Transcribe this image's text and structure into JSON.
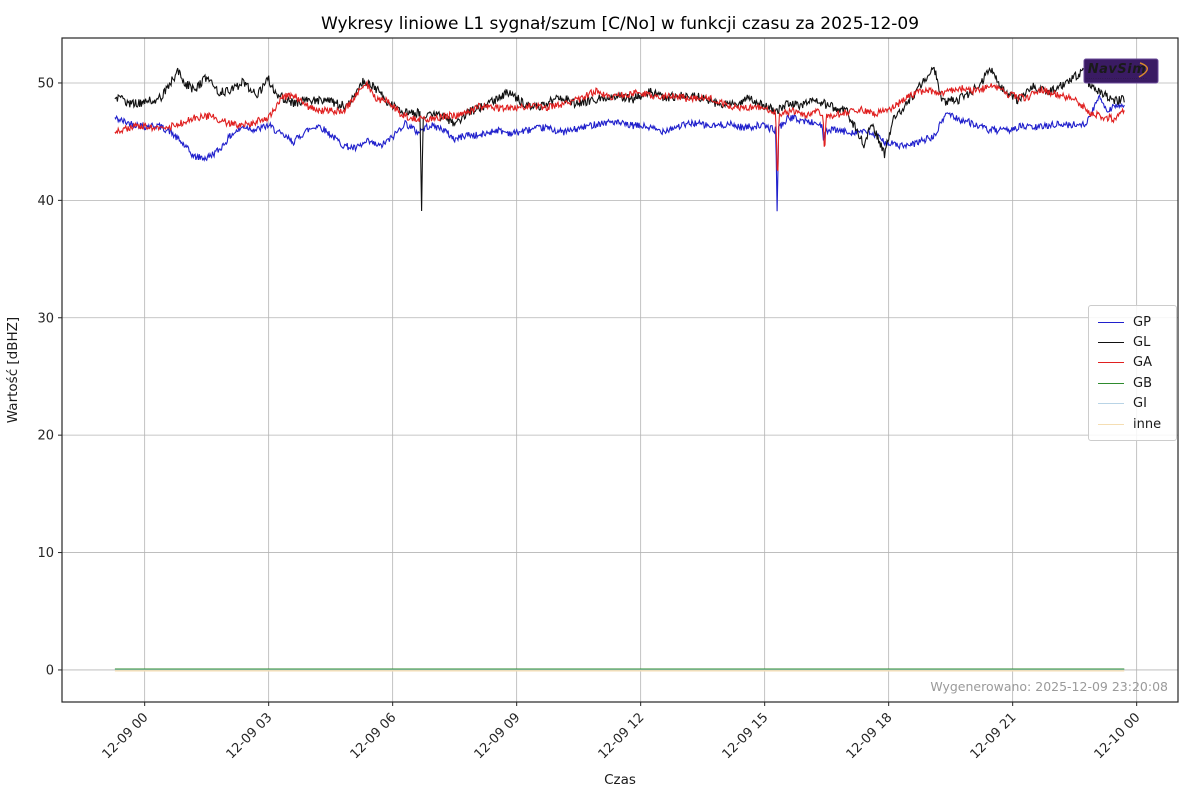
{
  "chart_data": {
    "type": "line",
    "title": "Wykresy liniowe L1 sygnał/szum [C/No] w funkcji czasu za 2025-12-09",
    "xlabel": "Czas",
    "ylabel": "Wartość [dBHZ]",
    "x_ticks": [
      "12-09 00",
      "12-09 03",
      "12-09 06",
      "12-09 09",
      "12-09 12",
      "12-09 15",
      "12-09 18",
      "12-09 21",
      "12-10 00"
    ],
    "x_tick_hours": [
      0,
      3,
      6,
      9,
      12,
      15,
      18,
      21,
      24
    ],
    "x_range_hours": [
      -2.0,
      25.0
    ],
    "y_ticks": [
      0,
      10,
      20,
      30,
      40,
      50
    ],
    "ylim": [
      -2.73,
      53.83
    ],
    "grid": true,
    "colors": {
      "grid": "#b4b4b4",
      "axis": "#262626",
      "generated_text": "#9a9a9a",
      "logo_bg": "#3a1b63",
      "logo_border": "#6a4a9a",
      "logo_text": "#4cc9a6",
      "logo_swoosh": "#d98a2b"
    },
    "legend": {
      "position": "right",
      "entries": [
        {
          "label": "GP",
          "color": "#2020cc"
        },
        {
          "label": "GL",
          "color": "#111111"
        },
        {
          "label": "GA",
          "color": "#e02020"
        },
        {
          "label": "GB",
          "color": "#2e8b2e"
        },
        {
          "label": "GI",
          "color": "#b9d4e6"
        },
        {
          "label": "inne",
          "color": "#f5deb3"
        }
      ]
    },
    "annotations": {
      "generated": "Wygenerowano: 2025-12-09 23:20:08",
      "logo_text": "NavSim",
      "logo_subtext": "···························"
    },
    "sample_step_hours": 0.02,
    "series": [
      {
        "name": "GP",
        "color": "#2020cc",
        "noise": 0.3,
        "width": 1.1,
        "anchors": [
          [
            -0.72,
            47.0
          ],
          [
            -0.4,
            46.6
          ],
          [
            0,
            46.3
          ],
          [
            0.3,
            46.4
          ],
          [
            0.6,
            45.9
          ],
          [
            0.9,
            44.9
          ],
          [
            1.2,
            43.7
          ],
          [
            1.5,
            43.6
          ],
          [
            1.8,
            44.3
          ],
          [
            2.1,
            45.6
          ],
          [
            2.4,
            46.3
          ],
          [
            2.7,
            46.0
          ],
          [
            3.0,
            46.4
          ],
          [
            3.3,
            45.6
          ],
          [
            3.6,
            45.0
          ],
          [
            3.9,
            45.9
          ],
          [
            4.2,
            46.4
          ],
          [
            4.5,
            45.6
          ],
          [
            4.8,
            44.7
          ],
          [
            5.1,
            44.4
          ],
          [
            5.4,
            45.0
          ],
          [
            5.7,
            44.6
          ],
          [
            6.0,
            45.4
          ],
          [
            6.3,
            46.6
          ],
          [
            6.6,
            45.8
          ],
          [
            6.9,
            46.4
          ],
          [
            7.2,
            46.1
          ],
          [
            7.5,
            45.2
          ],
          [
            7.8,
            45.6
          ],
          [
            8.1,
            45.5
          ],
          [
            8.5,
            46.0
          ],
          [
            8.9,
            45.7
          ],
          [
            9.3,
            46.0
          ],
          [
            9.7,
            46.2
          ],
          [
            10.1,
            45.8
          ],
          [
            10.5,
            46.1
          ],
          [
            10.9,
            46.5
          ],
          [
            11.3,
            46.7
          ],
          [
            11.7,
            46.4
          ],
          [
            12.1,
            46.3
          ],
          [
            12.5,
            45.9
          ],
          [
            12.9,
            46.3
          ],
          [
            13.3,
            46.6
          ],
          [
            13.7,
            46.3
          ],
          [
            14.1,
            46.5
          ],
          [
            14.5,
            46.2
          ],
          [
            14.9,
            46.4
          ],
          [
            15.27,
            46.0
          ],
          [
            15.3,
            39.0
          ],
          [
            15.34,
            46.2
          ],
          [
            15.6,
            47.1
          ],
          [
            15.9,
            46.8
          ],
          [
            16.2,
            46.6
          ],
          [
            16.39,
            46.4
          ],
          [
            16.43,
            44.6
          ],
          [
            16.47,
            45.9
          ],
          [
            16.7,
            46.0
          ],
          [
            17.0,
            45.8
          ],
          [
            17.3,
            45.9
          ],
          [
            17.6,
            45.7
          ],
          [
            17.9,
            45.0
          ],
          [
            18.2,
            44.7
          ],
          [
            18.5,
            44.6
          ],
          [
            18.8,
            45.1
          ],
          [
            19.1,
            45.4
          ],
          [
            19.4,
            47.5
          ],
          [
            19.7,
            46.9
          ],
          [
            20.0,
            46.6
          ],
          [
            20.4,
            46.0
          ],
          [
            20.8,
            45.9
          ],
          [
            21.2,
            46.3
          ],
          [
            21.6,
            46.2
          ],
          [
            22.0,
            46.5
          ],
          [
            22.4,
            46.4
          ],
          [
            22.8,
            46.6
          ],
          [
            23.1,
            48.9
          ],
          [
            23.3,
            47.6
          ],
          [
            23.5,
            48.2
          ],
          [
            23.72,
            47.9
          ]
        ]
      },
      {
        "name": "GL",
        "color": "#111111",
        "noise": 0.38,
        "width": 1.1,
        "anchors": [
          [
            -0.72,
            48.8
          ],
          [
            -0.3,
            48.2
          ],
          [
            0,
            48.4
          ],
          [
            0.4,
            48.7
          ],
          [
            0.8,
            51.0
          ],
          [
            1.0,
            49.9
          ],
          [
            1.2,
            49.4
          ],
          [
            1.5,
            50.5
          ],
          [
            1.8,
            49.2
          ],
          [
            2.1,
            49.4
          ],
          [
            2.4,
            50.1
          ],
          [
            2.7,
            48.9
          ],
          [
            3.0,
            50.3
          ],
          [
            3.2,
            49.0
          ],
          [
            3.6,
            48.3
          ],
          [
            4.0,
            48.6
          ],
          [
            4.4,
            48.5
          ],
          [
            4.9,
            48.0
          ],
          [
            5.3,
            50.2
          ],
          [
            5.6,
            49.5
          ],
          [
            5.9,
            48.3
          ],
          [
            6.2,
            47.6
          ],
          [
            6.5,
            47.5
          ],
          [
            6.66,
            47.4
          ],
          [
            6.7,
            39.2
          ],
          [
            6.74,
            47.3
          ],
          [
            7.1,
            47.3
          ],
          [
            7.5,
            46.6
          ],
          [
            7.9,
            47.6
          ],
          [
            8.3,
            48.2
          ],
          [
            8.8,
            49.2
          ],
          [
            9.2,
            48.2
          ],
          [
            9.6,
            48.0
          ],
          [
            10.0,
            48.8
          ],
          [
            10.4,
            48.3
          ],
          [
            10.9,
            48.5
          ],
          [
            11.3,
            49.0
          ],
          [
            11.8,
            48.6
          ],
          [
            12.2,
            49.3
          ],
          [
            12.6,
            48.7
          ],
          [
            13.0,
            49.0
          ],
          [
            13.4,
            48.8
          ],
          [
            13.8,
            48.3
          ],
          [
            14.2,
            48.1
          ],
          [
            14.6,
            48.7
          ],
          [
            15.0,
            48.0
          ],
          [
            15.3,
            47.6
          ],
          [
            15.6,
            48.3
          ],
          [
            15.9,
            48.1
          ],
          [
            16.2,
            48.6
          ],
          [
            16.6,
            48.0
          ],
          [
            17.0,
            47.5
          ],
          [
            17.4,
            44.8
          ],
          [
            17.6,
            46.5
          ],
          [
            17.9,
            43.9
          ],
          [
            18.1,
            46.8
          ],
          [
            18.5,
            48.6
          ],
          [
            18.8,
            49.9
          ],
          [
            19.1,
            51.3
          ],
          [
            19.3,
            48.4
          ],
          [
            19.7,
            48.6
          ],
          [
            20.1,
            49.5
          ],
          [
            20.5,
            51.2
          ],
          [
            20.7,
            49.6
          ],
          [
            21.1,
            48.5
          ],
          [
            21.5,
            49.7
          ],
          [
            21.9,
            49.2
          ],
          [
            22.3,
            50.0
          ],
          [
            22.7,
            51.0
          ],
          [
            22.9,
            49.6
          ],
          [
            23.2,
            49.0
          ],
          [
            23.5,
            48.5
          ],
          [
            23.72,
            48.6
          ]
        ]
      },
      {
        "name": "GA",
        "color": "#e02020",
        "noise": 0.3,
        "width": 1.1,
        "anchors": [
          [
            -0.72,
            45.9
          ],
          [
            -0.3,
            46.2
          ],
          [
            0,
            46.4
          ],
          [
            0.4,
            46.0
          ],
          [
            0.8,
            46.5
          ],
          [
            1.2,
            47.0
          ],
          [
            1.6,
            47.2
          ],
          [
            2.0,
            46.6
          ],
          [
            2.3,
            46.4
          ],
          [
            2.6,
            46.6
          ],
          [
            3.0,
            47.0
          ],
          [
            3.3,
            48.7
          ],
          [
            3.6,
            49.0
          ],
          [
            3.9,
            48.1
          ],
          [
            4.2,
            47.6
          ],
          [
            4.5,
            47.7
          ],
          [
            4.8,
            47.5
          ],
          [
            5.1,
            48.9
          ],
          [
            5.35,
            50.0
          ],
          [
            5.6,
            48.6
          ],
          [
            5.9,
            48.5
          ],
          [
            6.2,
            47.3
          ],
          [
            6.5,
            47.0
          ],
          [
            6.9,
            46.9
          ],
          [
            7.3,
            47.2
          ],
          [
            7.7,
            47.3
          ],
          [
            8.1,
            48.0
          ],
          [
            8.5,
            47.9
          ],
          [
            8.9,
            47.8
          ],
          [
            9.3,
            48.1
          ],
          [
            9.7,
            47.9
          ],
          [
            10.1,
            48.2
          ],
          [
            10.5,
            48.6
          ],
          [
            10.9,
            49.3
          ],
          [
            11.2,
            48.8
          ],
          [
            11.6,
            49.0
          ],
          [
            12.0,
            49.2
          ],
          [
            12.4,
            48.8
          ],
          [
            12.8,
            48.9
          ],
          [
            13.2,
            48.6
          ],
          [
            13.6,
            48.8
          ],
          [
            14.0,
            48.2
          ],
          [
            14.4,
            47.8
          ],
          [
            14.8,
            48.0
          ],
          [
            15.27,
            47.6
          ],
          [
            15.31,
            41.2
          ],
          [
            15.35,
            47.4
          ],
          [
            15.7,
            47.6
          ],
          [
            16.0,
            47.3
          ],
          [
            16.2,
            47.5
          ],
          [
            16.41,
            47.5
          ],
          [
            16.45,
            43.5
          ],
          [
            16.49,
            47.2
          ],
          [
            16.9,
            47.4
          ],
          [
            17.3,
            47.8
          ],
          [
            17.7,
            47.4
          ],
          [
            18.1,
            47.9
          ],
          [
            18.5,
            48.9
          ],
          [
            18.9,
            49.4
          ],
          [
            19.3,
            49.1
          ],
          [
            19.7,
            49.6
          ],
          [
            20.1,
            49.3
          ],
          [
            20.5,
            49.8
          ],
          [
            20.9,
            49.0
          ],
          [
            21.3,
            48.7
          ],
          [
            21.7,
            49.4
          ],
          [
            22.1,
            49.0
          ],
          [
            22.5,
            48.6
          ],
          [
            22.9,
            47.4
          ],
          [
            23.2,
            47.1
          ],
          [
            23.5,
            46.9
          ],
          [
            23.72,
            47.8
          ]
        ]
      },
      {
        "name": "GB",
        "color": "#2e8b2e",
        "noise": 0,
        "width": 1.3,
        "anchors": [
          [
            -0.72,
            0.07
          ],
          [
            23.72,
            0.07
          ]
        ]
      },
      {
        "name": "GI",
        "color": "#b9d4e6",
        "noise": 0,
        "width": 1.0,
        "anchors": [
          [
            -0.72,
            0.0
          ],
          [
            23.72,
            0.0
          ]
        ]
      },
      {
        "name": "inne",
        "color": "#f5deb3",
        "noise": 0,
        "width": 1.3,
        "anchors": [
          [
            -0.72,
            -0.07
          ],
          [
            23.72,
            -0.07
          ]
        ]
      }
    ]
  }
}
